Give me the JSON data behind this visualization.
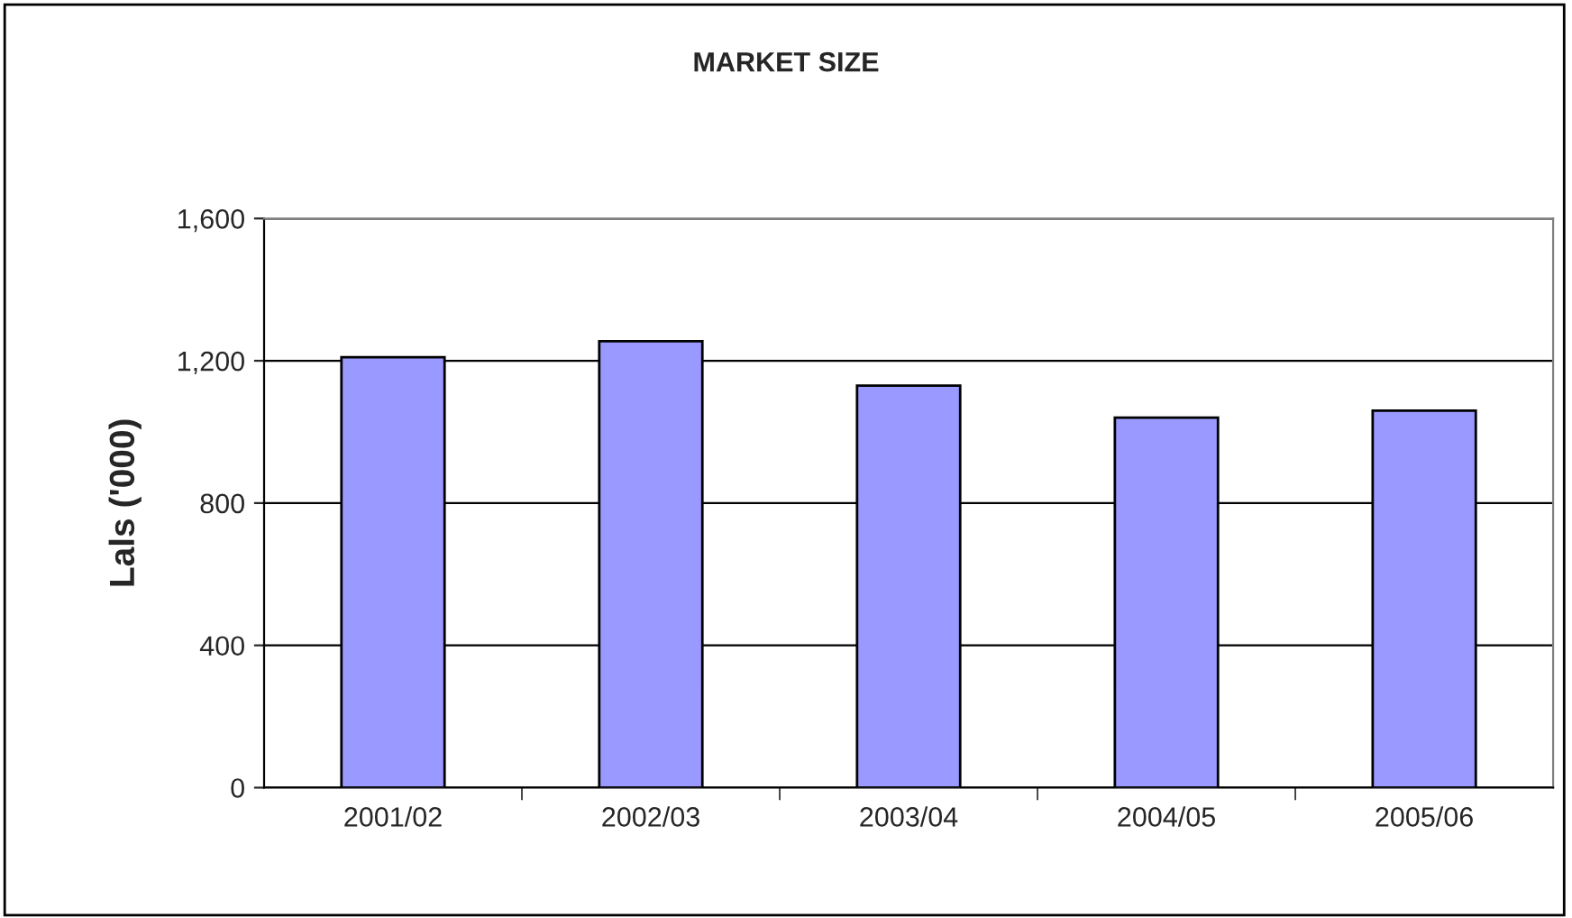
{
  "chart_data": {
    "type": "bar",
    "title": "MARKET SIZE",
    "ylabel": "Lals ('000)",
    "categories": [
      "2001/02",
      "2002/03",
      "2003/04",
      "2004/05",
      "2005/06"
    ],
    "values": [
      1210,
      1255,
      1130,
      1040,
      1060
    ],
    "color": "#9999ff",
    "ylim": [
      0,
      1600
    ],
    "yticks": [
      0,
      {
        "value": 400,
        "label": "400"
      },
      {
        "value": 800,
        "label": "800"
      },
      {
        "value": 1200,
        "label": "1,200"
      },
      {
        "value": 1600,
        "label": "1,600"
      }
    ],
    "grid": "y",
    "legend": false
  }
}
